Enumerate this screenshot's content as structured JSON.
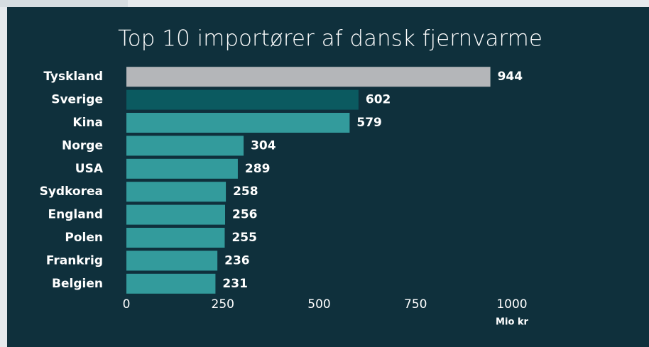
{
  "chart_data": {
    "type": "hbar",
    "title": "Top 10 importører af dansk fjernvarme",
    "categories": [
      "Tyskland",
      "Sverige",
      "Kina",
      "Norge",
      "USA",
      "Sydkorea",
      "England",
      "Polen",
      "Frankrig",
      "Belgien"
    ],
    "values": [
      944,
      602,
      579,
      304,
      289,
      258,
      256,
      255,
      236,
      231
    ],
    "colors": [
      "#b4b6b9",
      "#0b5a60",
      "#339b9c",
      "#339b9c",
      "#339b9c",
      "#339b9c",
      "#339b9c",
      "#339b9c",
      "#339b9c",
      "#339b9c"
    ],
    "xlabel": "Mio kr",
    "xlim": [
      0,
      1000
    ],
    "xticks": [
      0,
      250,
      500,
      750,
      1000
    ],
    "grid": false
  }
}
